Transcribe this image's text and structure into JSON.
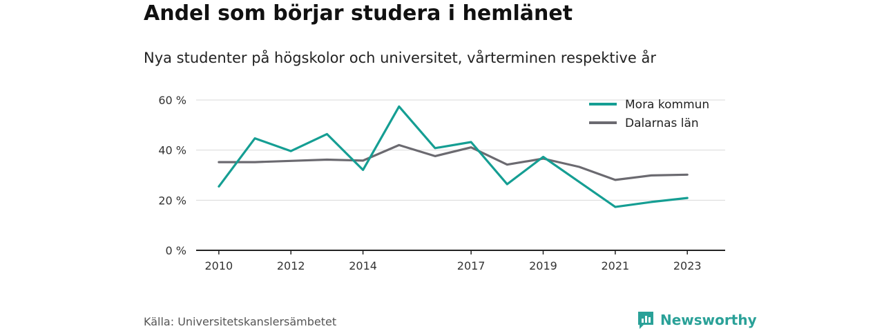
{
  "header": {
    "title": "Andel som börjar studera i hemlänet",
    "subtitle": "Nya studenter på högskolor och universitet, vårterminen respektive år"
  },
  "footer": {
    "source": "Källa: Universitetskanslersämbetet",
    "brand": "Newsworthy",
    "brand_color": "#2aa198"
  },
  "chart_data": {
    "type": "line",
    "title": "Andel som börjar studera i hemlänet",
    "subtitle": "Nya studenter på högskolor och universitet, vårterminen respektive år",
    "x": [
      2010,
      2011,
      2012,
      2013,
      2014,
      2015,
      2016,
      2017,
      2018,
      2019,
      2020,
      2021,
      2022,
      2023
    ],
    "x_tick_labels": [
      "2010",
      "2012",
      "2014",
      "2017",
      "2019",
      "2021",
      "2023"
    ],
    "x_tick_values": [
      2010,
      2012,
      2014,
      2017,
      2019,
      2021,
      2023
    ],
    "y_tick_labels": [
      "0 %",
      "20 %",
      "40 %",
      "60 %"
    ],
    "y_tick_values": [
      0,
      20,
      40,
      60
    ],
    "ylim": [
      0,
      60
    ],
    "grid": true,
    "legend_position": "top-right",
    "series": [
      {
        "name": "Mora kommun",
        "color": "#159e93",
        "values": [
          25.5,
          44.7,
          39.6,
          46.4,
          32.1,
          57.4,
          40.8,
          43.2,
          26.4,
          37.3,
          27.3,
          17.3,
          19.3,
          20.9
        ]
      },
      {
        "name": "Dalarnas län",
        "color": "#6b6a70",
        "values": [
          35.2,
          35.2,
          35.7,
          36.2,
          35.8,
          42.0,
          37.6,
          41.1,
          34.2,
          36.6,
          33.3,
          28.1,
          29.9,
          30.2
        ]
      }
    ]
  }
}
